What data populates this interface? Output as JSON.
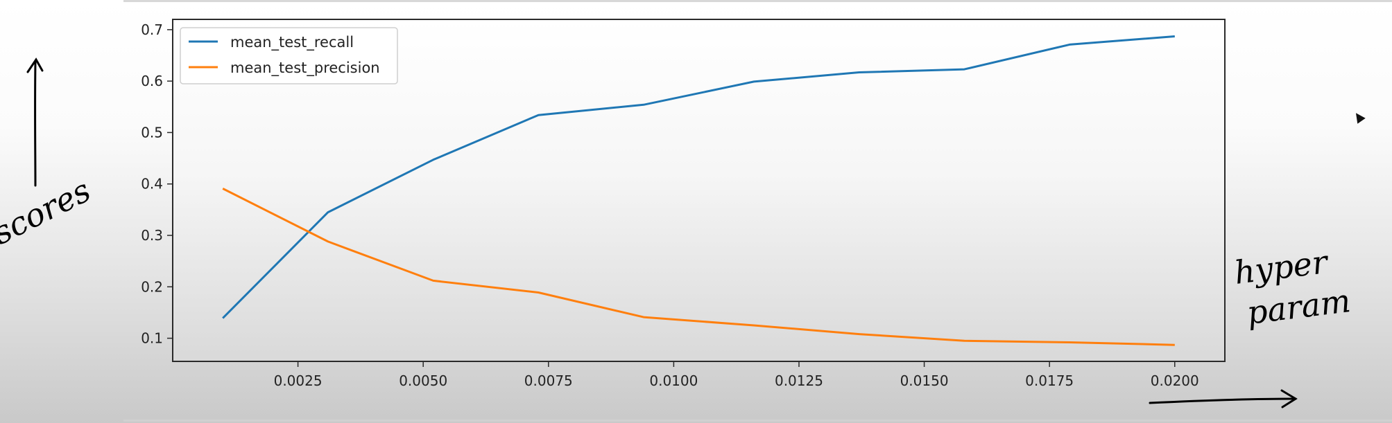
{
  "chart_data": {
    "type": "line",
    "title": "",
    "xlabel": "",
    "ylabel": "",
    "xlim": [
      0.0,
      0.021
    ],
    "ylim": [
      0.055,
      0.72
    ],
    "xticks": [
      "0.0025",
      "0.0050",
      "0.0075",
      "0.0100",
      "0.0125",
      "0.0150",
      "0.0175",
      "0.0200"
    ],
    "xtick_values": [
      0.0025,
      0.005,
      0.0075,
      0.01,
      0.0125,
      0.015,
      0.0175,
      0.02
    ],
    "yticks": [
      "0.1",
      "0.2",
      "0.3",
      "0.4",
      "0.5",
      "0.6",
      "0.7"
    ],
    "ytick_values": [
      0.1,
      0.2,
      0.3,
      0.4,
      0.5,
      0.6,
      0.7
    ],
    "x": [
      0.001,
      0.0031,
      0.0052,
      0.0073,
      0.0094,
      0.0116,
      0.0137,
      0.0158,
      0.0179,
      0.02
    ],
    "series": [
      {
        "name": "mean_test_recall",
        "color": "#1f77b4",
        "values": [
          0.139,
          0.345,
          0.447,
          0.534,
          0.554,
          0.599,
          0.617,
          0.623,
          0.671,
          0.687
        ]
      },
      {
        "name": "mean_test_precision",
        "color": "#ff7f0e",
        "values": [
          0.391,
          0.288,
          0.212,
          0.189,
          0.141,
          0.125,
          0.108,
          0.095,
          0.092,
          0.087
        ]
      }
    ],
    "legend": "top-left",
    "grid": false
  },
  "annotations": {
    "left_label": "scores",
    "right_label_line1": "hyper",
    "right_label_line2": "param"
  }
}
